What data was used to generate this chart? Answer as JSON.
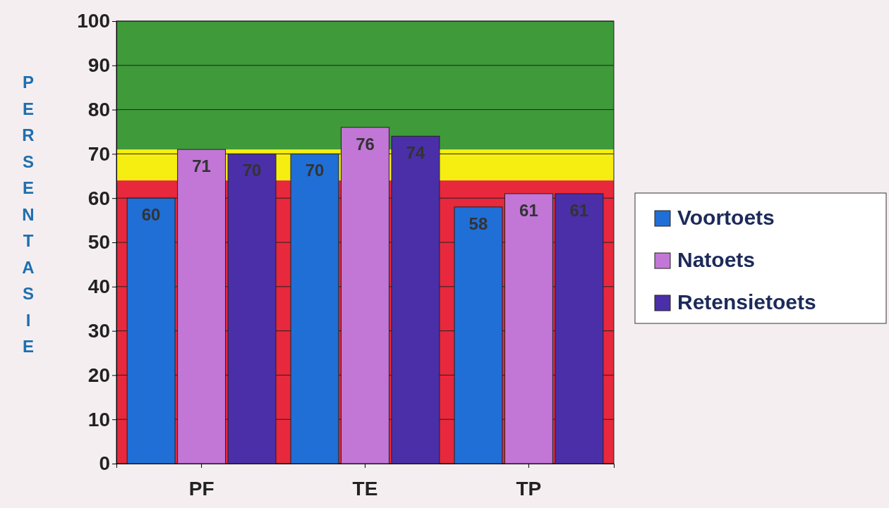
{
  "chart_data": {
    "type": "bar",
    "ylabel": "PERSENTASIE",
    "categories": [
      "PF",
      "TE",
      "TP"
    ],
    "series": [
      {
        "name": "Voortoets",
        "color": "#1f6fd6",
        "values": [
          60,
          70,
          58
        ]
      },
      {
        "name": "Natoets",
        "color": "#c277d6",
        "values": [
          71,
          76,
          61
        ]
      },
      {
        "name": "Retensietoets",
        "color": "#4b2fa8",
        "values": [
          70,
          74,
          61
        ]
      }
    ],
    "ylim": [
      0,
      100
    ],
    "yticks": [
      0,
      10,
      20,
      30,
      40,
      50,
      60,
      70,
      80,
      90,
      100
    ],
    "grid": "y",
    "legend": "right",
    "data_labels": true,
    "bands": [
      {
        "axis": "y",
        "from": 0,
        "to": 64,
        "color": "#e8283c"
      },
      {
        "axis": "y",
        "from": 64,
        "to": 71,
        "color": "#f5ee10"
      },
      {
        "axis": "y",
        "from": 71,
        "to": 100,
        "color": "#3f9a3a"
      }
    ]
  }
}
